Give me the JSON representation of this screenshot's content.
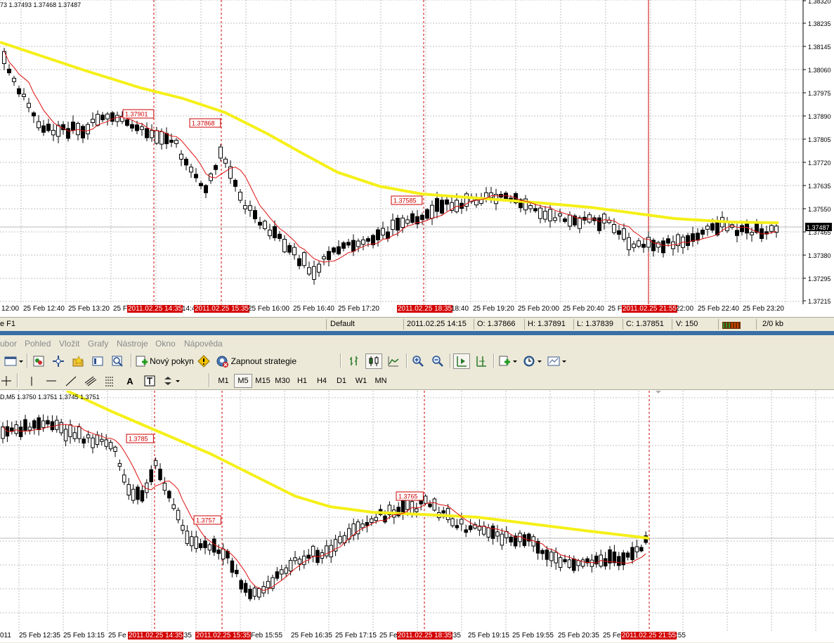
{
  "chart1": {
    "ohlc_label": "73 1.37493 1.37468 1.37487",
    "price_axis": [
      "1.38320",
      "1.38235",
      "1.38145",
      "1.38060",
      "1.37975",
      "1.37890",
      "1.37805",
      "1.37720",
      "1.37635",
      "1.37550",
      "1.37465",
      "1.37380",
      "1.37295",
      "1.37215"
    ],
    "current_price": "1.37487",
    "labels": {
      "l1": "1.37901",
      "l2": "1.37868",
      "l3": "1.37585"
    },
    "time_axis": [
      {
        "t": "12:00"
      },
      {
        "t": "25 Feb 12:40"
      },
      {
        "t": "25 Feb 13:20"
      },
      {
        "t": "25 F"
      },
      {
        "t": "2011.02.25 14:35",
        "hl": true
      },
      {
        "t": "14:4"
      },
      {
        "t": "2011.02.25 15:35",
        "hl": true
      },
      {
        "t": "25 Feb 16:00"
      },
      {
        "t": "25 Feb 16:40"
      },
      {
        "t": "25 Feb 17:20"
      },
      {
        "t": "2011.02.25 18:35",
        "hl": true
      },
      {
        "t": "18:40"
      },
      {
        "t": "25 Feb 19:20"
      },
      {
        "t": "25 Feb 20:00"
      },
      {
        "t": "25 Feb 20:40"
      },
      {
        "t": "25 F"
      },
      {
        "t": "2011.02.25 21:55",
        "hl": true
      },
      {
        "t": "22:00"
      },
      {
        "t": "25 Feb 22:40"
      },
      {
        "t": "25 Feb 23:20"
      }
    ]
  },
  "statusbar": {
    "help": "e F1",
    "profile": "Default",
    "datetime": "2011.02.25 14:15",
    "open": "O: 1.37866",
    "high": "H: 1.37891",
    "low": "L: 1.37839",
    "close": "C: 1.37851",
    "volume": "V: 150",
    "traffic": "2/0 kb"
  },
  "menu": [
    "ubor",
    "Pohled",
    "Vložit",
    "Grafy",
    "Nástroje",
    "Okno",
    "Nápověda"
  ],
  "toolbar": {
    "new_order": "Nový pokyn",
    "strategy": "Zapnout strategie",
    "draw_text": "A",
    "timeframes": [
      "M1",
      "M5",
      "M15",
      "M30",
      "H1",
      "H4",
      "D1",
      "W1",
      "MN"
    ],
    "active_timeframe": "M5"
  },
  "chart2": {
    "ohlc_label": "D,M5  1.3750 1.3751 1.3745 1.3751",
    "labels": {
      "l1": "1.3785",
      "l2": "1.3757",
      "l3": "1.3765"
    },
    "time_axis": [
      {
        "t": "011"
      },
      {
        "t": "25 Feb 12:35"
      },
      {
        "t": "25 Feb 13:15"
      },
      {
        "t": "25 Fe"
      },
      {
        "t": "2011.02.25 14:35",
        "hl": true
      },
      {
        "t": ":35"
      },
      {
        "t": "2011.02.25 15:35",
        "hl": true
      },
      {
        "t": "Feb 15:55"
      },
      {
        "t": "25 Feb 16:35"
      },
      {
        "t": "25 Feb 17:15"
      },
      {
        "t": "25 Fe"
      },
      {
        "t": "2011.02.25 18:35",
        "hl": true
      },
      {
        "t": ":35"
      },
      {
        "t": "25 Feb 19:15"
      },
      {
        "t": "25 Feb 19:55"
      },
      {
        "t": "25 Feb 20:35"
      },
      {
        "t": "25 Fe"
      },
      {
        "t": "2011.02.25 21:55",
        "hl": true
      },
      {
        "t": ":55"
      }
    ]
  },
  "colors": {
    "ma_slow": "#f5f019",
    "ma_fast": "#e01010",
    "marker": "#cc0000",
    "grid": "#c0c0c0"
  }
}
